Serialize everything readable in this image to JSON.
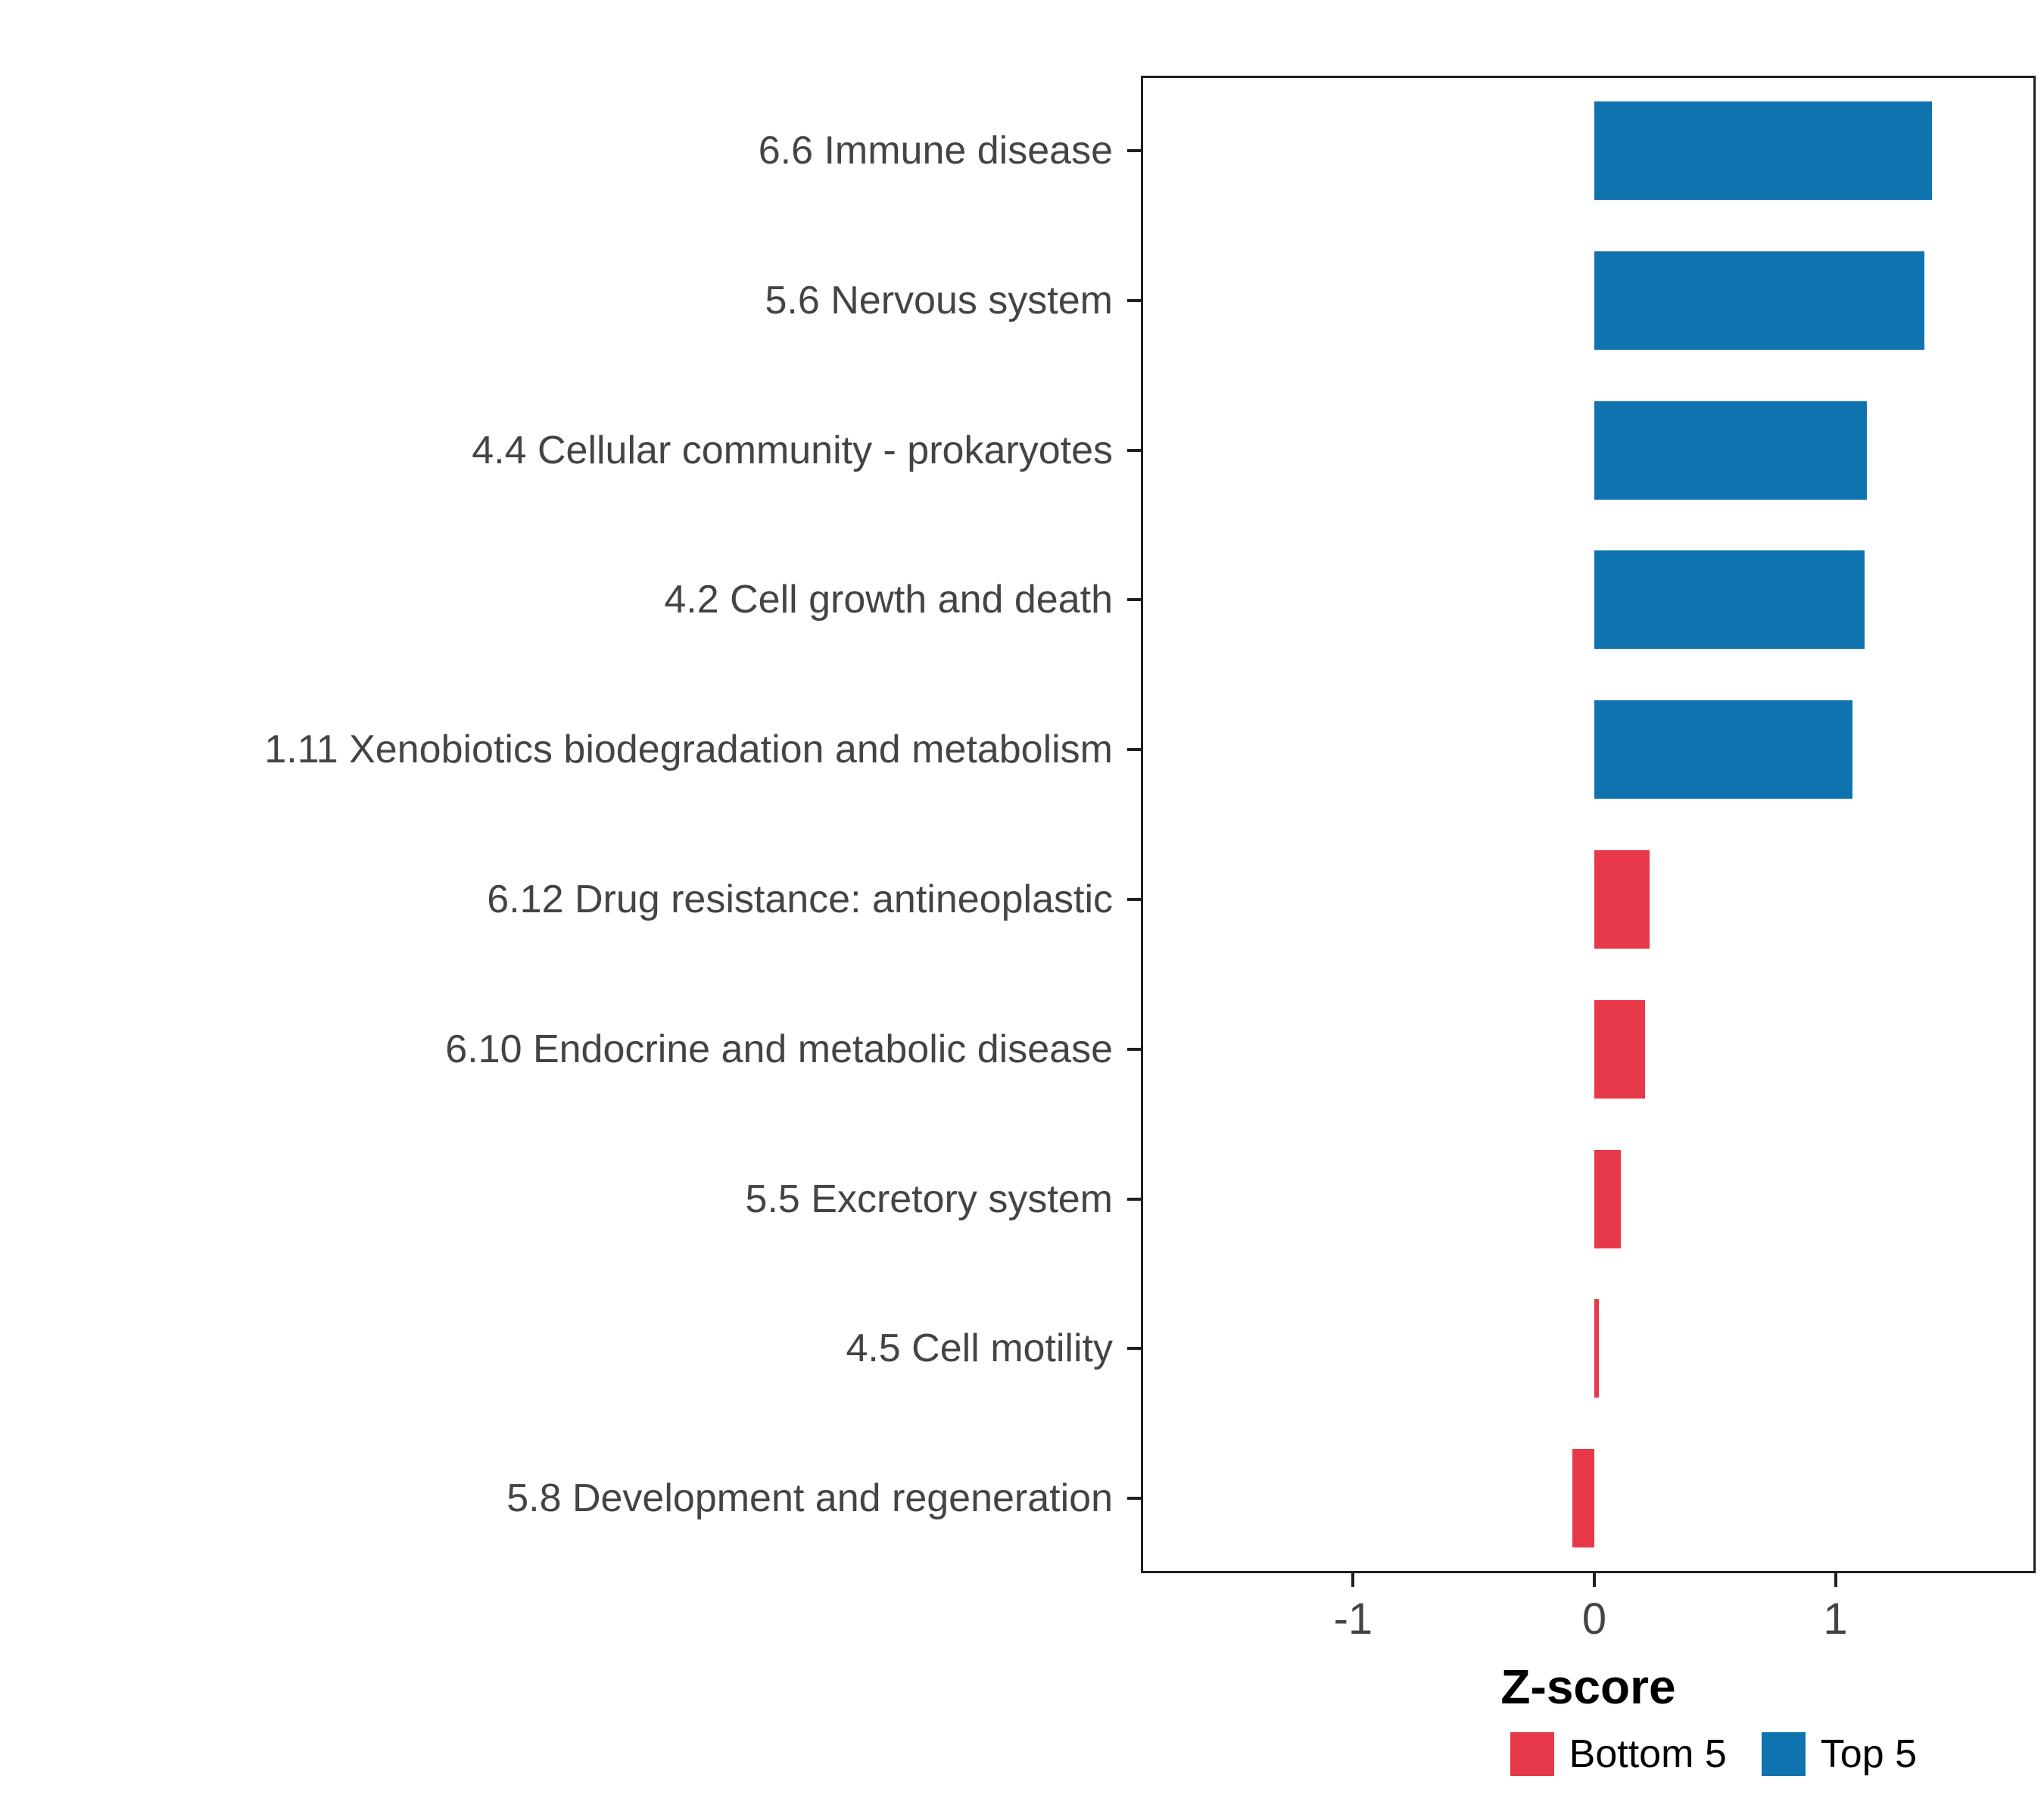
{
  "chart_data": {
    "type": "bar",
    "orientation": "horizontal",
    "title": "",
    "xlabel": "Z-score",
    "categories": [
      "6.6 Immune disease",
      "5.6 Nervous system",
      "4.4 Cellular community - prokaryotes",
      "4.2 Cell growth and death",
      "1.11 Xenobiotics biodegradation and metabolism",
      "6.12 Drug resistance: antineoplastic",
      "6.10 Endocrine and metabolic disease",
      "5.5 Excretory system",
      "4.5 Cell motility",
      "5.8 Development and regeneration"
    ],
    "values": [
      1.4,
      1.37,
      1.13,
      1.12,
      1.07,
      0.23,
      0.21,
      0.11,
      0.02,
      -0.09
    ],
    "groups": [
      "Top 5",
      "Top 5",
      "Top 5",
      "Top 5",
      "Top 5",
      "Bottom 5",
      "Bottom 5",
      "Bottom 5",
      "Bottom 5",
      "Bottom 5"
    ],
    "series_colors": {
      "Top 5": "#0e73ae",
      "Bottom 5": "#e8394a"
    },
    "x_ticks": [
      -1,
      0,
      1
    ],
    "xlim": [
      -1.88,
      1.83
    ],
    "grid": false,
    "legend_position": "bottom-right",
    "legend": [
      {
        "label": "Bottom 5",
        "color": "#e8394a"
      },
      {
        "label": "Top 5",
        "color": "#0e73ae"
      }
    ]
  }
}
